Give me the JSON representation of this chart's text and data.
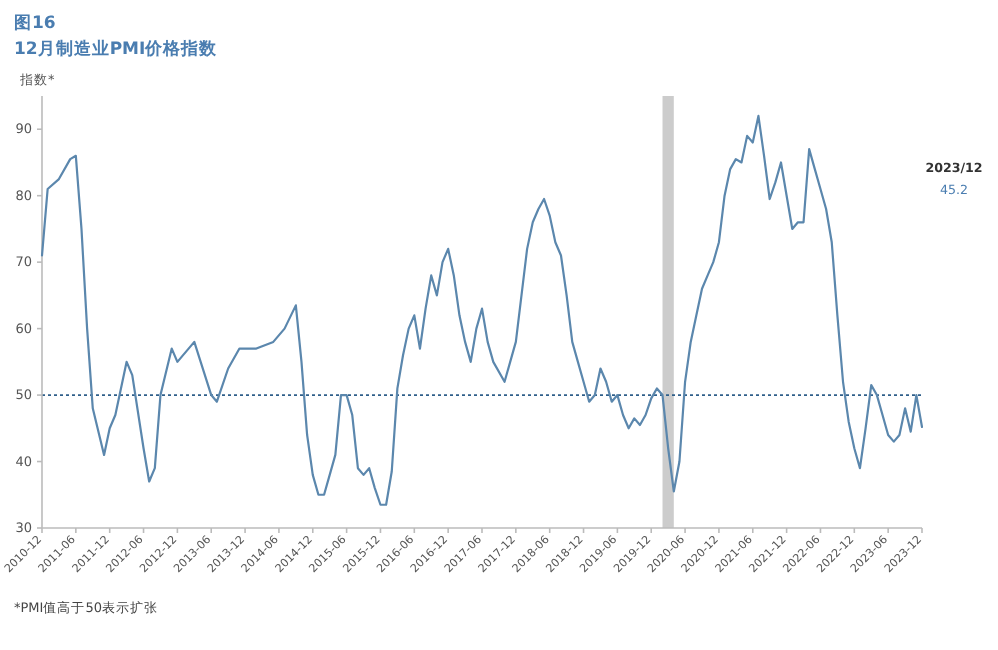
{
  "chart_data": {
    "type": "line",
    "title": "图16",
    "subtitle": "12月制造业PMI价格指数",
    "ylabel": "指数*",
    "annotations": [
      "2023/12",
      "45.2",
      "*PMI值高于50表示扩张"
    ],
    "xlim": [
      "2010-12",
      "2023-12"
    ],
    "xticks": [
      "2010-12",
      "2011-06",
      "2011-12",
      "2012-06",
      "2012-12",
      "2013-06",
      "2013-12",
      "2014-06",
      "2014-12",
      "2015-06",
      "2015-12",
      "2016-06",
      "2016-12",
      "2017-06",
      "2017-12",
      "2018-06",
      "2018-12",
      "2019-06",
      "2019-12",
      "2020-06",
      "2020-12",
      "2021-06",
      "2021-12",
      "2022-06",
      "2022-12",
      "2023-06",
      "2023-12"
    ],
    "ylim": [
      30,
      95
    ],
    "yticks": [
      30,
      40,
      50,
      60,
      70,
      80,
      90
    ],
    "ref_lines": [
      {
        "axis": "y",
        "value": 50,
        "color": "#2f5f8a",
        "line_style": "dotted"
      }
    ],
    "bands": [
      {
        "axis": "x",
        "from": "2020-02",
        "to": "2020-04",
        "color": "#cccccc"
      }
    ],
    "series": [
      {
        "color": "#5b87ad",
        "x": [
          "2010-12",
          "2011-01",
          "2011-03",
          "2011-05",
          "2011-06",
          "2011-07",
          "2011-08",
          "2011-09",
          "2011-11",
          "2011-12",
          "2012-01",
          "2012-03",
          "2012-04",
          "2012-06",
          "2012-07",
          "2012-08",
          "2012-09",
          "2012-11",
          "2012-12",
          "2013-03",
          "2013-06",
          "2013-07",
          "2013-09",
          "2013-11",
          "2014-02",
          "2014-05",
          "2014-07",
          "2014-09",
          "2014-10",
          "2014-11",
          "2014-12",
          "2015-01",
          "2015-02",
          "2015-03",
          "2015-04",
          "2015-05",
          "2015-06",
          "2015-07",
          "2015-08",
          "2015-09",
          "2015-10",
          "2015-11",
          "2015-12",
          "2016-01",
          "2016-02",
          "2016-03",
          "2016-04",
          "2016-05",
          "2016-06",
          "2016-07",
          "2016-08",
          "2016-09",
          "2016-10",
          "2016-11",
          "2016-12",
          "2017-01",
          "2017-02",
          "2017-03",
          "2017-04",
          "2017-05",
          "2017-06",
          "2017-07",
          "2017-08",
          "2017-10",
          "2017-12",
          "2018-01",
          "2018-02",
          "2018-03",
          "2018-04",
          "2018-05",
          "2018-06",
          "2018-07",
          "2018-08",
          "2018-09",
          "2018-10",
          "2018-11",
          "2018-12",
          "2019-01",
          "2019-02",
          "2019-03",
          "2019-04",
          "2019-05",
          "2019-06",
          "2019-07",
          "2019-08",
          "2019-09",
          "2019-10",
          "2019-11",
          "2019-12",
          "2020-01",
          "2020-02",
          "2020-03",
          "2020-04",
          "2020-05",
          "2020-06",
          "2020-07",
          "2020-08",
          "2020-09",
          "2020-10",
          "2020-11",
          "2020-12",
          "2021-01",
          "2021-02",
          "2021-03",
          "2021-04",
          "2021-05",
          "2021-06",
          "2021-07",
          "2021-08",
          "2021-09",
          "2021-10",
          "2021-11",
          "2021-12",
          "2022-01",
          "2022-02",
          "2022-03",
          "2022-04",
          "2022-05",
          "2022-06",
          "2022-07",
          "2022-08",
          "2022-09",
          "2022-10",
          "2022-11",
          "2022-12",
          "2023-01",
          "2023-02",
          "2023-03",
          "2023-04",
          "2023-05",
          "2023-06",
          "2023-07",
          "2023-08",
          "2023-09",
          "2023-10",
          "2023-11",
          "2023-12"
        ],
        "values": [
          71,
          81,
          82.5,
          85.5,
          86,
          75,
          60,
          48,
          41,
          45,
          47,
          55,
          53,
          42,
          37,
          39,
          50,
          57,
          55,
          58,
          50,
          49,
          54,
          57,
          57,
          58,
          60,
          63.5,
          55,
          44,
          38,
          35,
          35,
          38,
          41,
          50,
          50,
          47,
          39,
          38,
          39,
          36,
          33.5,
          33.5,
          38.5,
          51,
          56,
          60,
          62,
          57,
          63,
          68,
          65,
          70,
          72,
          68,
          62,
          58,
          55,
          60,
          63,
          58,
          55,
          52,
          58,
          65,
          72,
          76,
          78,
          79.5,
          77,
          73,
          71,
          65,
          58,
          55,
          52,
          49,
          50,
          54,
          52,
          49,
          50,
          47,
          45,
          46.5,
          45.5,
          47,
          49.5,
          51,
          50,
          42,
          35.5,
          40,
          52,
          58,
          62,
          66,
          68,
          70,
          73,
          80,
          84,
          85.5,
          85,
          89,
          88,
          92,
          86,
          79.5,
          82,
          85,
          80,
          75,
          76,
          76,
          87,
          84,
          81,
          78,
          73,
          62,
          52,
          46,
          42,
          39,
          45,
          51.5,
          50,
          47,
          44,
          43,
          44,
          48,
          44.5,
          50,
          45.2
        ]
      }
    ]
  }
}
